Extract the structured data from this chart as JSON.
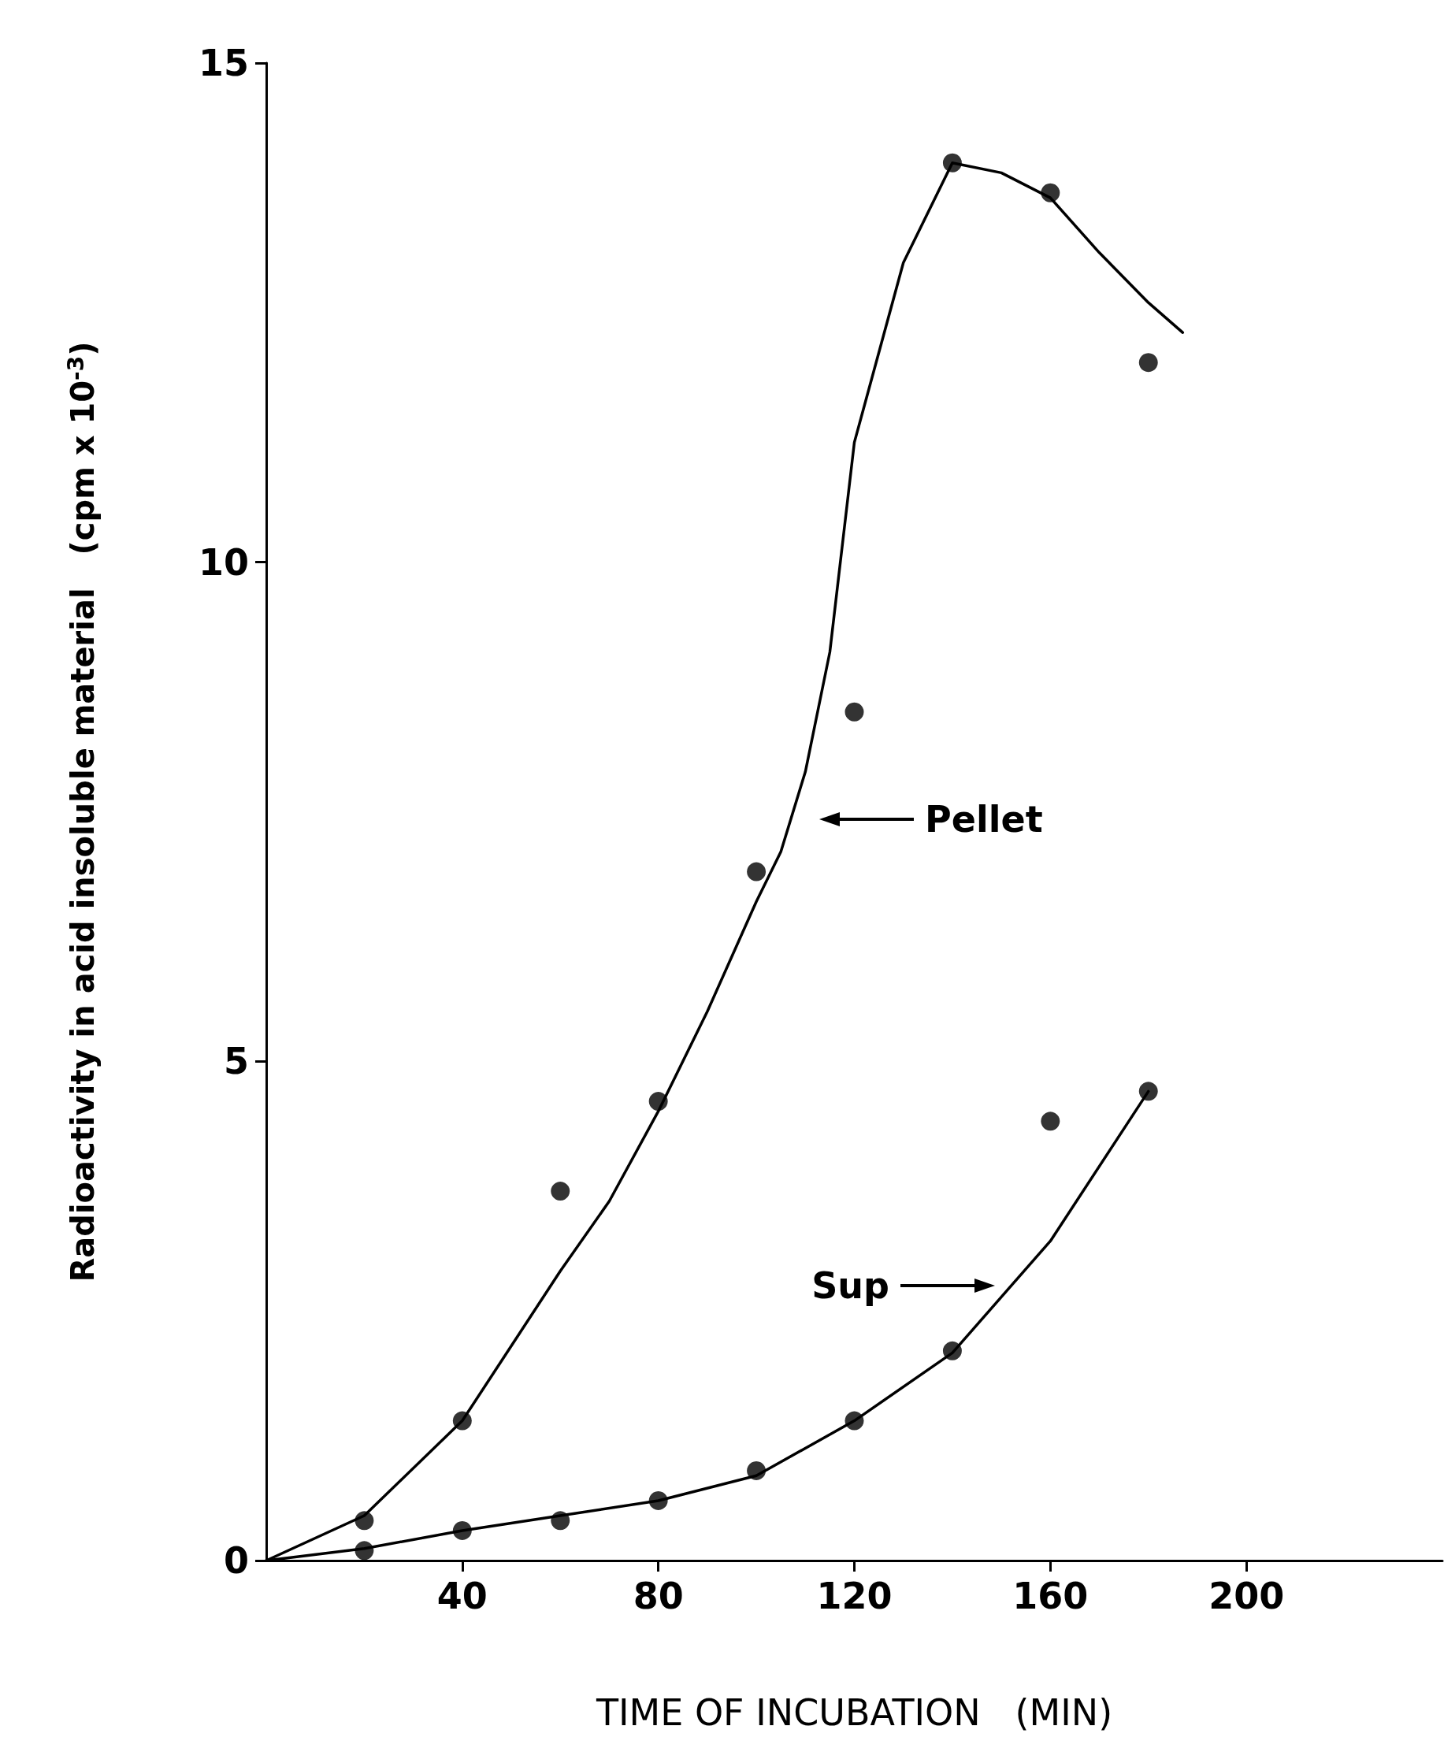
{
  "chart_data": {
    "type": "scatter",
    "xlabel": "TIME OF INCUBATION   (MIN)",
    "ylabel": "Radioactivity in acid insoluble material   (cpm x 10$^{-3}$)",
    "xlim": [
      0,
      240
    ],
    "xticks": [
      40,
      80,
      120,
      160,
      200
    ],
    "ylim": [
      0,
      15
    ],
    "yticks": [
      0,
      5,
      10,
      15
    ],
    "grid": false,
    "series": [
      {
        "marker": "circle",
        "color": "#000000",
        "x": [
          20,
          40,
          60,
          80,
          100,
          120,
          140,
          160,
          180
        ],
        "values": [
          0.4,
          1.4,
          3.7,
          4.6,
          6.9,
          8.5,
          14.0,
          13.7,
          12.0
        ]
      },
      {
        "type": "line",
        "marker": "none",
        "line_style": "solid",
        "color": "#000000",
        "x": [
          0,
          20,
          40,
          60,
          70,
          80,
          90,
          100,
          105,
          110,
          115,
          120,
          130,
          140,
          150,
          160,
          170,
          180,
          187
        ],
        "values": [
          0,
          0.45,
          1.4,
          2.9,
          3.6,
          4.5,
          5.5,
          6.6,
          7.1,
          7.9,
          9.1,
          11.2,
          13.0,
          14.0,
          13.9,
          13.65,
          13.1,
          12.6,
          12.3
        ]
      },
      {
        "marker": "circle",
        "color": "#000000",
        "x": [
          20,
          40,
          60,
          80,
          100,
          120,
          140,
          160,
          180
        ],
        "values": [
          0.1,
          0.3,
          0.4,
          0.6,
          0.9,
          1.4,
          2.1,
          4.4,
          4.7
        ]
      },
      {
        "type": "line",
        "marker": "none",
        "line_style": "solid",
        "color": "#000000",
        "x": [
          0,
          20,
          40,
          60,
          80,
          100,
          120,
          140,
          160,
          180
        ],
        "values": [
          0,
          0.12,
          0.3,
          0.45,
          0.6,
          0.85,
          1.4,
          2.08,
          3.2,
          4.7
        ]
      }
    ],
    "annotations": [
      "Pellet",
      "Sup"
    ]
  }
}
